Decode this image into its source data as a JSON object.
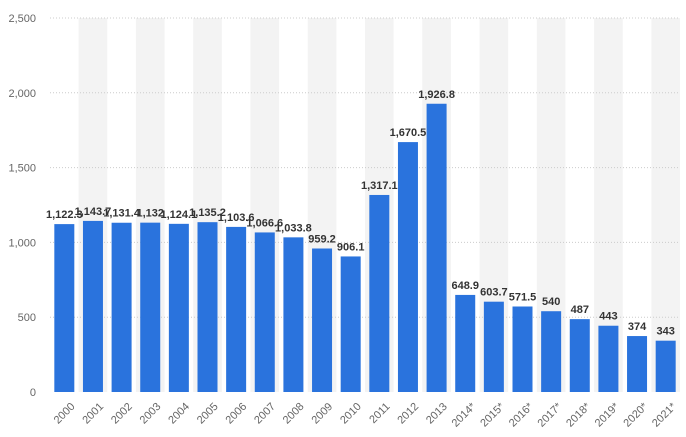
{
  "chart_data": {
    "type": "bar",
    "title": "",
    "xlabel": "",
    "ylabel": "",
    "ylim": [
      0,
      2500
    ],
    "yticks": [
      0,
      500,
      1000,
      1500,
      2000,
      2500
    ],
    "ytick_labels": [
      "0",
      "500",
      "1,000",
      "1,500",
      "2,000",
      "2,500"
    ],
    "grid": true,
    "legend": "none",
    "colors": {
      "bar": "#2a73dd",
      "band": "#f3f3f3",
      "grid": "#cccccc"
    },
    "categories": [
      "2000",
      "2001",
      "2002",
      "2003",
      "2004",
      "2005",
      "2006",
      "2007",
      "2008",
      "2009",
      "2010",
      "2011",
      "2012",
      "2013",
      "2014*",
      "2015*",
      "2016*",
      "2017*",
      "2018*",
      "2019*",
      "2020*",
      "2021*"
    ],
    "values": [
      1122.3,
      1143.7,
      1131.4,
      1132,
      1124.1,
      1135.2,
      1103.6,
      1066.6,
      1033.8,
      959.2,
      906.1,
      1317.1,
      1670.5,
      1926.8,
      648.9,
      603.7,
      571.5,
      540,
      487,
      443,
      374,
      343
    ],
    "value_labels": [
      "1,122.3",
      "1,143.7",
      "1,131.4",
      "1,132",
      "1,124.1",
      "1,135.2",
      "1,103.6",
      "1,066.6",
      "1,033.8",
      "959.2",
      "906.1",
      "1,317.1",
      "1,670.5",
      "1,926.8",
      "648.9",
      "603.7",
      "571.5",
      "540",
      "487",
      "443",
      "374",
      "343"
    ]
  }
}
